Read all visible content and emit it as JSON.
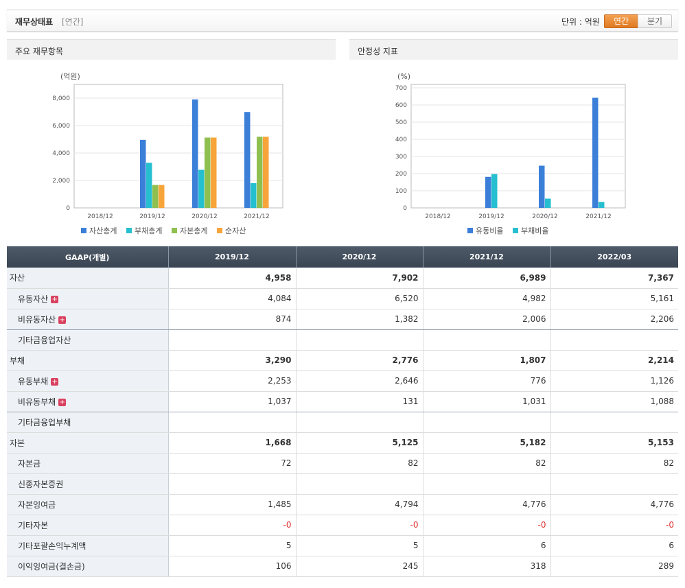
{
  "header": {
    "title": "재무상태표",
    "subtitle": "[연간]",
    "unit_label": "단위 : 억원",
    "btn_annual": "연간",
    "btn_quarter": "분기"
  },
  "panels": {
    "left_title": "주요 재무항목",
    "right_title": "안정성 지표"
  },
  "chart_data": [
    {
      "type": "bar",
      "ylabel": "(억원)",
      "categories": [
        "2018/12",
        "2019/12",
        "2020/12",
        "2021/12"
      ],
      "ylim": [
        0,
        9000
      ],
      "yticks": [
        0,
        2000,
        4000,
        6000,
        8000
      ],
      "ytick_labels": [
        "0",
        "2,000",
        "4,000",
        "6,000",
        "8,000"
      ],
      "grid": true,
      "legend": "bottom",
      "series": [
        {
          "name": "자산총계",
          "color": "#3b7fd9",
          "values": [
            null,
            4958,
            7902,
            6989
          ]
        },
        {
          "name": "부채총계",
          "color": "#26bfd0",
          "values": [
            null,
            3290,
            2776,
            1807
          ]
        },
        {
          "name": "자본총계",
          "color": "#8fbf4f",
          "values": [
            null,
            1668,
            5125,
            5182
          ]
        },
        {
          "name": "순자산",
          "color": "#f7a43a",
          "values": [
            null,
            1668,
            5125,
            5182
          ]
        }
      ]
    },
    {
      "type": "bar",
      "ylabel": "(%)",
      "categories": [
        "2018/12",
        "2019/12",
        "2020/12",
        "2021/12"
      ],
      "ylim": [
        0,
        720
      ],
      "yticks": [
        0,
        100,
        200,
        300,
        400,
        500,
        600,
        700
      ],
      "ytick_labels": [
        "0",
        "100",
        "200",
        "300",
        "400",
        "500",
        "600",
        "700"
      ],
      "grid": true,
      "legend": "bottom",
      "series": [
        {
          "name": "유동비율",
          "color": "#3b7fd9",
          "values": [
            null,
            181,
            246,
            642
          ]
        },
        {
          "name": "부채비율",
          "color": "#26bfd0",
          "values": [
            null,
            197,
            54,
            35
          ]
        }
      ]
    }
  ],
  "table": {
    "headers": [
      "GAAP(개별)",
      "2019/12",
      "2020/12",
      "2021/12",
      "2022/03"
    ],
    "rows": [
      {
        "label": "자산",
        "values": [
          "4,958",
          "7,902",
          "6,989",
          "7,367"
        ]
      },
      {
        "label": "유동자산",
        "values": [
          "4,084",
          "6,520",
          "4,982",
          "5,161"
        ]
      },
      {
        "label": "비유동자산",
        "values": [
          "874",
          "1,382",
          "2,006",
          "2,206"
        ]
      },
      {
        "label": "기타금융업자산",
        "values": [
          "",
          "",
          "",
          ""
        ]
      },
      {
        "label": "부채",
        "values": [
          "3,290",
          "2,776",
          "1,807",
          "2,214"
        ]
      },
      {
        "label": "유동부채",
        "values": [
          "2,253",
          "2,646",
          "776",
          "1,126"
        ]
      },
      {
        "label": "비유동부채",
        "values": [
          "1,037",
          "131",
          "1,031",
          "1,088"
        ]
      },
      {
        "label": "기타금융업부채",
        "values": [
          "",
          "",
          "",
          ""
        ]
      },
      {
        "label": "자본",
        "values": [
          "1,668",
          "5,125",
          "5,182",
          "5,153"
        ]
      },
      {
        "label": "자본금",
        "values": [
          "72",
          "82",
          "82",
          "82"
        ]
      },
      {
        "label": "신종자본증권",
        "values": [
          "",
          "",
          "",
          ""
        ]
      },
      {
        "label": "자본잉여금",
        "values": [
          "1,485",
          "4,794",
          "4,776",
          "4,776"
        ]
      },
      {
        "label": "기타자본",
        "values": [
          "-0",
          "-0",
          "-0",
          "-0"
        ]
      },
      {
        "label": "기타포괄손익누계액",
        "values": [
          "5",
          "5",
          "6",
          "6"
        ]
      },
      {
        "label": "이익잉여금(결손금)",
        "values": [
          "106",
          "245",
          "318",
          "289"
        ]
      }
    ]
  },
  "expand_icon": "plus-icon"
}
